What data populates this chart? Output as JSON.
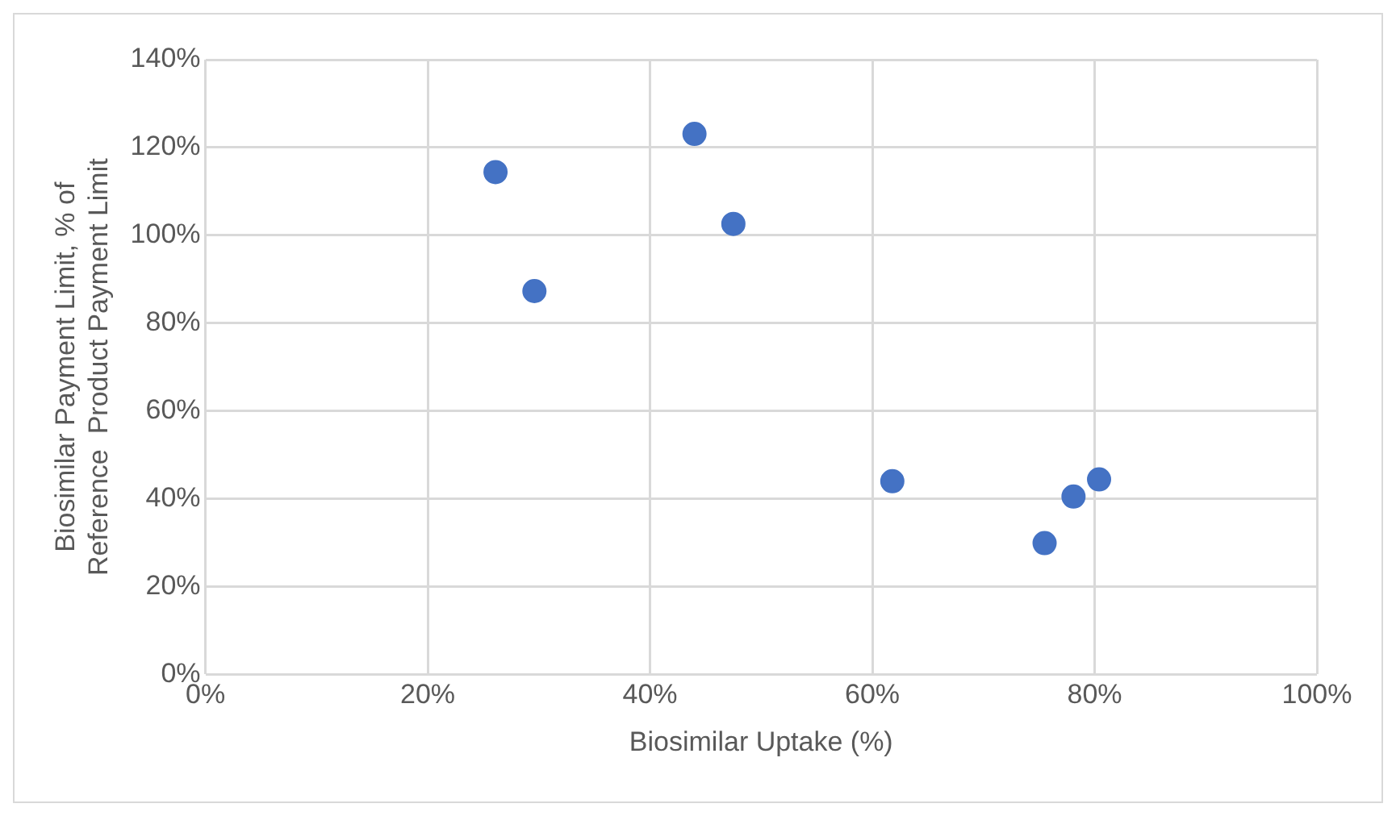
{
  "chart_data": {
    "type": "scatter",
    "xlabel": "Biosimilar Uptake (%)",
    "ylabel": "Biosimilar Payment Limit, % of\nReference  Product Payment Limit",
    "x": [
      26.1,
      29.6,
      44.0,
      47.5,
      61.8,
      75.5,
      78.1,
      80.4
    ],
    "series": [
      {
        "color": "#4472c4",
        "values": [
          114.4,
          87.3,
          123.1,
          102.6,
          44.0,
          29.9,
          40.5,
          44.4
        ]
      }
    ],
    "xlim": [
      0,
      100
    ],
    "xticks": [
      {
        "value": 0,
        "label": "0%"
      },
      {
        "value": 20,
        "label": "20%"
      },
      {
        "value": 40,
        "label": "40%"
      },
      {
        "value": 60,
        "label": "60%"
      },
      {
        "value": 80,
        "label": "80%"
      },
      {
        "value": 100,
        "label": "100%"
      }
    ],
    "ylim": [
      0,
      140
    ],
    "yticks": [
      {
        "value": 0,
        "label": "0%"
      },
      {
        "value": 20,
        "label": "20%"
      },
      {
        "value": 40,
        "label": "40%"
      },
      {
        "value": 60,
        "label": "60%"
      },
      {
        "value": 80,
        "label": "80%"
      },
      {
        "value": 100,
        "label": "100%"
      },
      {
        "value": 120,
        "label": "120%"
      },
      {
        "value": 140,
        "label": "140%"
      }
    ],
    "grid": true,
    "legend": false,
    "marker": "circle"
  }
}
